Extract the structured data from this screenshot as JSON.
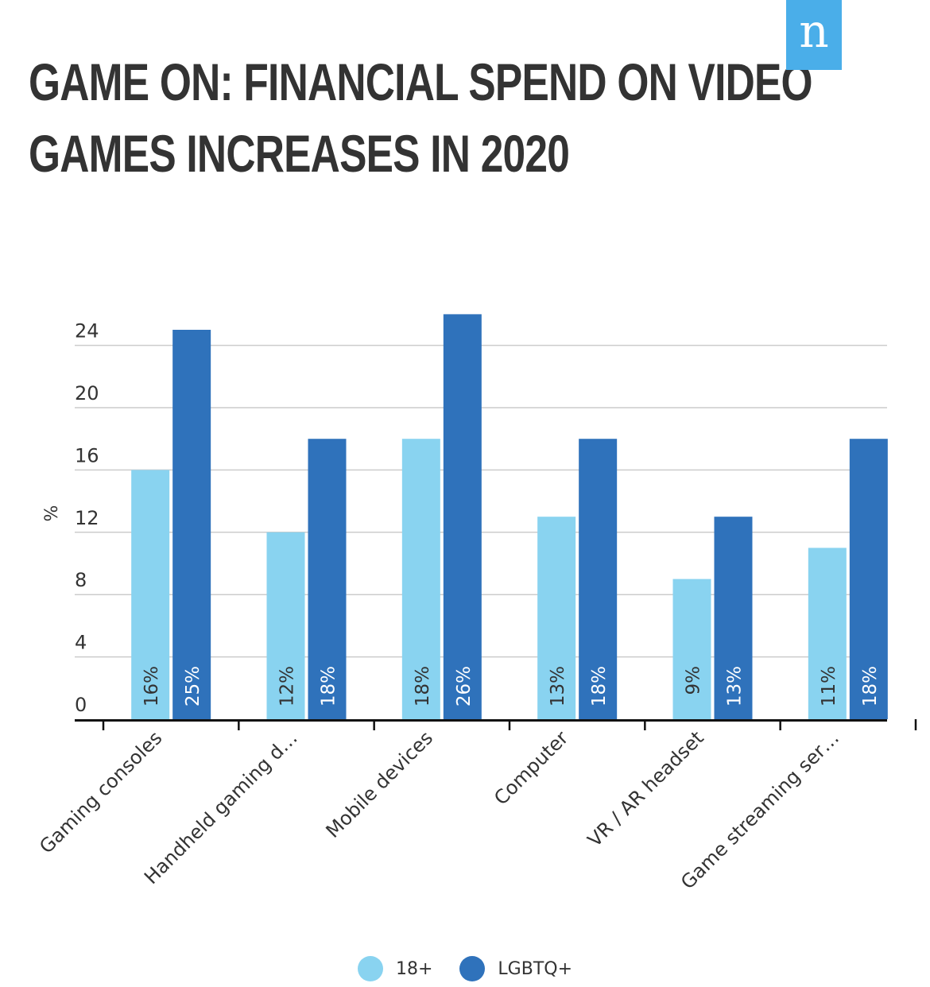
{
  "header": {
    "title_line1": "GAME ON: FINANCIAL SPEND ON VIDEO",
    "title_line2": "GAMES INCREASES IN 2020",
    "logo_text": "n"
  },
  "colors": {
    "series_18plus": "#89d3f0",
    "series_lgbtq": "#2f72bb",
    "logo_bg": "#4aaee9",
    "grid": "#cccccc",
    "axis": "#111111"
  },
  "chart_data": {
    "type": "bar",
    "title": "GAME ON: FINANCIAL SPEND ON VIDEO GAMES INCREASES IN 2020",
    "ylabel": "%",
    "xlabel": "",
    "ylim": [
      0,
      26
    ],
    "yticks": [
      0,
      4,
      8,
      12,
      16,
      20,
      24
    ],
    "grid": true,
    "legend_position": "bottom-center",
    "categories": [
      "Gaming consoles",
      "Handheld gaming d…",
      "Mobile devices",
      "Computer",
      "VR / AR headset",
      "Game streaming ser…"
    ],
    "series": [
      {
        "name": "18+",
        "values": [
          16,
          12,
          18,
          13,
          9,
          11
        ],
        "labels": [
          "16%",
          "12%",
          "18%",
          "13%",
          "9%",
          "11%"
        ],
        "color": "#89d3f0"
      },
      {
        "name": "LGBTQ+",
        "values": [
          25,
          18,
          26,
          18,
          13,
          18
        ],
        "labels": [
          "25%",
          "18%",
          "26%",
          "18%",
          "13%",
          "18%"
        ],
        "color": "#2f72bb"
      }
    ]
  }
}
